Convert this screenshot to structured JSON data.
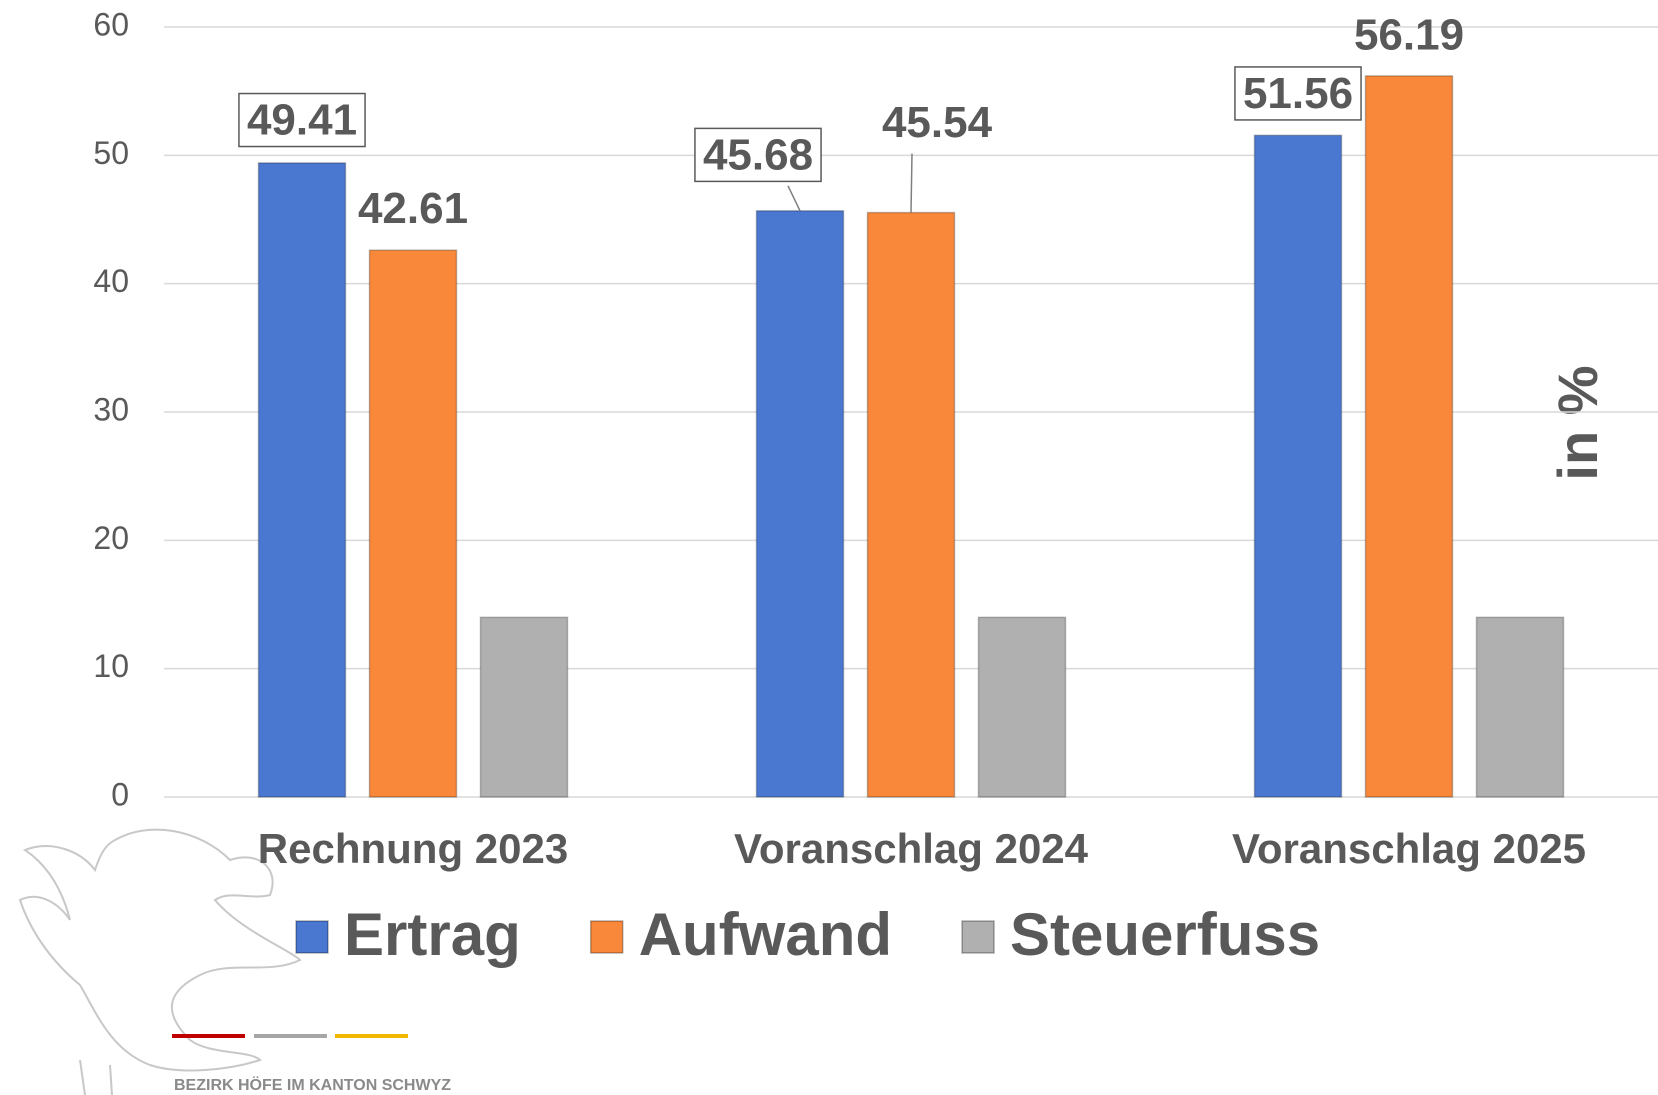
{
  "chart_data": {
    "type": "bar",
    "categories": [
      "Rechnung 2023",
      "Voranschlag 2024",
      "Voranschlag 2025"
    ],
    "series": [
      {
        "name": "Ertrag",
        "color": "#4a78d0",
        "values": [
          49.41,
          45.68,
          51.56
        ]
      },
      {
        "name": "Aufwand",
        "color": "#f9883a",
        "values": [
          42.61,
          45.54,
          56.19
        ]
      },
      {
        "name": "Steuerfuss",
        "color": "#b0b0b0",
        "values": [
          14,
          14,
          14
        ]
      }
    ],
    "ylim": [
      0,
      60
    ],
    "yticks": [
      0,
      10,
      20,
      30,
      40,
      50,
      60
    ],
    "grid": true,
    "legend": "bottom",
    "annotations": [
      "in %"
    ],
    "footer": "BEZIRK HÖFE IM KANTON SCHWYZ"
  }
}
